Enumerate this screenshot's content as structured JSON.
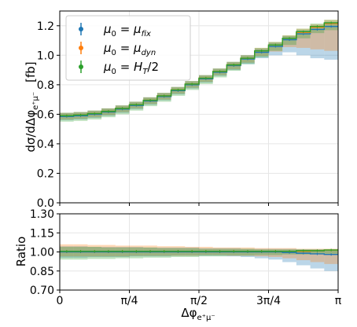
{
  "chart_data": [
    {
      "type": "line",
      "panel": "main",
      "ylabel_text": "dσ/dΔφ",
      "ylabel_sub": "e⁺μ⁻",
      "ylabel_unit": "[fb]",
      "ylim": [
        0.0,
        1.3
      ],
      "yticks": [
        "0.0",
        "0.2",
        "0.4",
        "0.6",
        "0.8",
        "1.0",
        "1.2"
      ],
      "ytick_values": [
        0.0,
        0.2,
        0.4,
        0.6,
        0.8,
        1.0,
        1.2
      ],
      "grid": true,
      "legend_placement": "top-left",
      "x_bins": 20,
      "series": [
        {
          "name": "μ0 = μfix",
          "label_main": "μ",
          "label_sub": "0",
          "label_eq": " = ",
          "label_rhs": "μ",
          "label_rhs_sub": "fix",
          "color": "#1f77b4",
          "values": [
            0.585,
            0.59,
            0.6,
            0.615,
            0.635,
            0.66,
            0.69,
            0.72,
            0.76,
            0.8,
            0.84,
            0.885,
            0.93,
            0.975,
            1.02,
            1.06,
            1.105,
            1.145,
            1.175,
            1.195
          ],
          "band_low": [
            0.56,
            0.565,
            0.575,
            0.59,
            0.61,
            0.635,
            0.665,
            0.695,
            0.735,
            0.775,
            0.815,
            0.86,
            0.9,
            0.94,
            0.98,
            1.0,
            1.02,
            1.0,
            0.98,
            0.97
          ],
          "band_high": [
            0.61,
            0.615,
            0.625,
            0.64,
            0.66,
            0.685,
            0.715,
            0.745,
            0.785,
            0.825,
            0.865,
            0.91,
            0.955,
            1.0,
            1.045,
            1.085,
            1.13,
            1.17,
            1.2,
            1.225
          ]
        },
        {
          "name": "μ0 = μdyn",
          "label_main": "μ",
          "label_sub": "0",
          "label_eq": " = ",
          "label_rhs": "μ",
          "label_rhs_sub": "dyn",
          "color": "#ff7f0e",
          "values": [
            0.59,
            0.595,
            0.605,
            0.62,
            0.64,
            0.665,
            0.695,
            0.725,
            0.765,
            0.805,
            0.845,
            0.89,
            0.935,
            0.98,
            1.03,
            1.07,
            1.115,
            1.155,
            1.19,
            1.215
          ],
          "band_low": [
            0.565,
            0.57,
            0.58,
            0.595,
            0.615,
            0.64,
            0.67,
            0.7,
            0.74,
            0.78,
            0.82,
            0.865,
            0.905,
            0.95,
            0.995,
            1.025,
            1.055,
            1.05,
            1.04,
            1.03
          ],
          "band_high": [
            0.61,
            0.615,
            0.625,
            0.64,
            0.66,
            0.685,
            0.715,
            0.745,
            0.785,
            0.825,
            0.865,
            0.91,
            0.955,
            1.0,
            1.05,
            1.09,
            1.135,
            1.18,
            1.21,
            1.24
          ]
        },
        {
          "name": "μ0 = HT/2",
          "label_main": "μ",
          "label_sub": "0",
          "label_eq": " = ",
          "label_rhs": "H",
          "label_rhs_sub": "T",
          "label_tail": "/2",
          "color": "#2ca02c",
          "values": [
            0.59,
            0.595,
            0.605,
            0.62,
            0.64,
            0.665,
            0.695,
            0.725,
            0.765,
            0.805,
            0.845,
            0.89,
            0.935,
            0.98,
            1.03,
            1.07,
            1.115,
            1.16,
            1.195,
            1.22
          ],
          "band_low": [
            0.55,
            0.555,
            0.565,
            0.58,
            0.6,
            0.625,
            0.655,
            0.685,
            0.725,
            0.765,
            0.805,
            0.85,
            0.895,
            0.94,
            0.985,
            1.03,
            1.07,
            1.115,
            1.15,
            1.17
          ],
          "band_high": [
            0.61,
            0.615,
            0.625,
            0.64,
            0.66,
            0.685,
            0.715,
            0.745,
            0.785,
            0.825,
            0.865,
            0.91,
            0.955,
            1.0,
            1.05,
            1.09,
            1.135,
            1.18,
            1.215,
            1.24
          ]
        }
      ]
    },
    {
      "type": "line",
      "panel": "ratio",
      "ylabel": "Ratio",
      "ylim": [
        0.7,
        1.3
      ],
      "yticks": [
        "0.70",
        "0.85",
        "1.00",
        "1.15",
        "1.30"
      ],
      "ytick_values": [
        0.7,
        0.85,
        1.0,
        1.15,
        1.3
      ],
      "xlabel_text": "Δφ",
      "xlabel_sub": "e⁺μ⁻",
      "xlim": [
        0,
        3.14159
      ],
      "xticks": [
        "0",
        "π/4",
        "π/2",
        "3π/4",
        "π"
      ],
      "xtick_values": [
        0,
        0.785398,
        1.570796,
        2.356194,
        3.14159
      ],
      "grid": true,
      "series": [
        {
          "name": "μ0 = μfix",
          "color": "#1f77b4",
          "values": [
            1.0,
            1.0,
            1.0,
            1.0,
            1.0,
            1.0,
            1.0,
            1.0,
            1.0,
            1.0,
            1.0,
            1.0,
            1.0,
            1.0,
            1.0,
            1.0,
            0.995,
            0.99,
            0.985,
            0.98
          ],
          "band_low": [
            0.955,
            0.955,
            0.96,
            0.96,
            0.96,
            0.965,
            0.965,
            0.965,
            0.97,
            0.97,
            0.97,
            0.97,
            0.965,
            0.96,
            0.95,
            0.94,
            0.92,
            0.895,
            0.87,
            0.85
          ],
          "band_high": [
            1.045,
            1.045,
            1.04,
            1.04,
            1.04,
            1.04,
            1.035,
            1.035,
            1.035,
            1.035,
            1.03,
            1.03,
            1.03,
            1.025,
            1.025,
            1.025,
            1.025,
            1.02,
            1.02,
            1.02
          ]
        },
        {
          "name": "μ0 = μdyn",
          "color": "#ff7f0e",
          "values": [
            1.005,
            1.005,
            1.005,
            1.005,
            1.005,
            1.005,
            1.005,
            1.005,
            1.005,
            1.005,
            1.005,
            1.005,
            1.005,
            1.005,
            1.005,
            1.005,
            1.005,
            1.005,
            1.01,
            1.015
          ],
          "band_low": [
            0.965,
            0.965,
            0.965,
            0.965,
            0.965,
            0.97,
            0.97,
            0.97,
            0.97,
            0.97,
            0.975,
            0.975,
            0.97,
            0.97,
            0.965,
            0.96,
            0.95,
            0.935,
            0.92,
            0.905
          ],
          "band_high": [
            1.06,
            1.06,
            1.055,
            1.055,
            1.05,
            1.05,
            1.05,
            1.045,
            1.045,
            1.04,
            1.04,
            1.035,
            1.035,
            1.035,
            1.03,
            1.03,
            1.03,
            1.025,
            1.025,
            1.025
          ]
        },
        {
          "name": "μ0 = HT/2",
          "color": "#2ca02c",
          "values": [
            1.005,
            1.005,
            1.005,
            1.005,
            1.005,
            1.005,
            1.005,
            1.005,
            1.005,
            1.005,
            1.005,
            1.005,
            1.005,
            1.005,
            1.005,
            1.005,
            1.005,
            1.01,
            1.01,
            1.015
          ],
          "band_low": [
            0.94,
            0.94,
            0.945,
            0.945,
            0.95,
            0.95,
            0.955,
            0.955,
            0.96,
            0.96,
            0.965,
            0.965,
            0.97,
            0.97,
            0.975,
            0.975,
            0.98,
            0.98,
            0.985,
            0.985
          ],
          "band_high": [
            1.04,
            1.04,
            1.04,
            1.035,
            1.035,
            1.035,
            1.035,
            1.03,
            1.03,
            1.03,
            1.025,
            1.025,
            1.025,
            1.025,
            1.02,
            1.02,
            1.02,
            1.02,
            1.02,
            1.02
          ]
        }
      ]
    }
  ]
}
